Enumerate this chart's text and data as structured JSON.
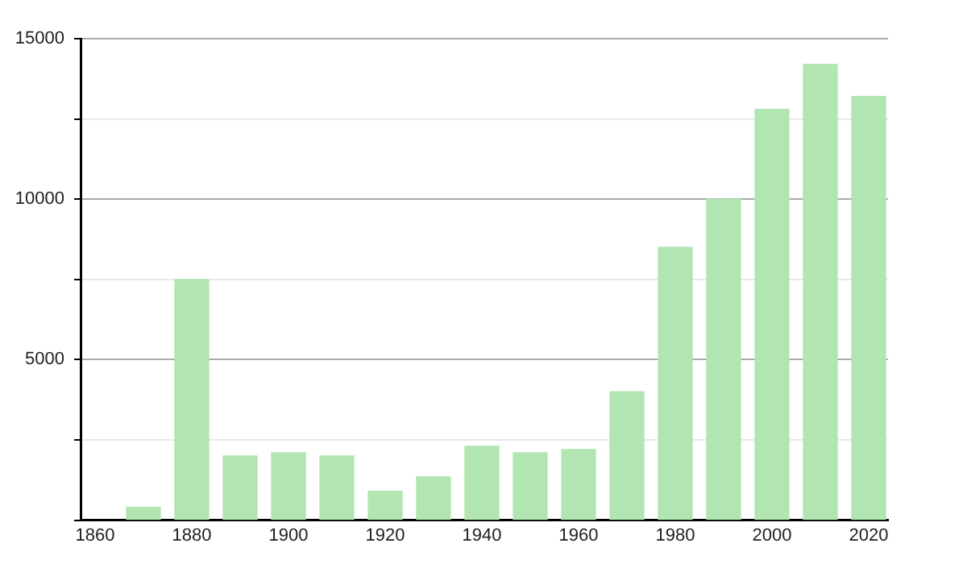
{
  "chart_data": {
    "type": "bar",
    "x": [
      1870,
      1880,
      1890,
      1900,
      1910,
      1920,
      1930,
      1940,
      1950,
      1960,
      1970,
      1980,
      1990,
      2000,
      2010,
      2020
    ],
    "values": [
      400,
      7500,
      2000,
      2100,
      2000,
      900,
      1350,
      2300,
      2100,
      2200,
      4000,
      8500,
      10000,
      12800,
      14200,
      13200
    ],
    "color": "#b1e5b1",
    "xlim": [
      1857,
      2024
    ],
    "xticks": [
      1860,
      1880,
      1900,
      1920,
      1940,
      1960,
      1980,
      2000,
      2020
    ],
    "ylim": [
      0,
      15000
    ],
    "yticks": [
      {
        "value": 0,
        "label": null
      },
      {
        "value": 2500,
        "label": null
      },
      5000,
      {
        "value": 7500,
        "label": null
      },
      10000,
      {
        "value": 12500,
        "label": null
      },
      15000
    ],
    "grid": "y",
    "legend": false
  }
}
